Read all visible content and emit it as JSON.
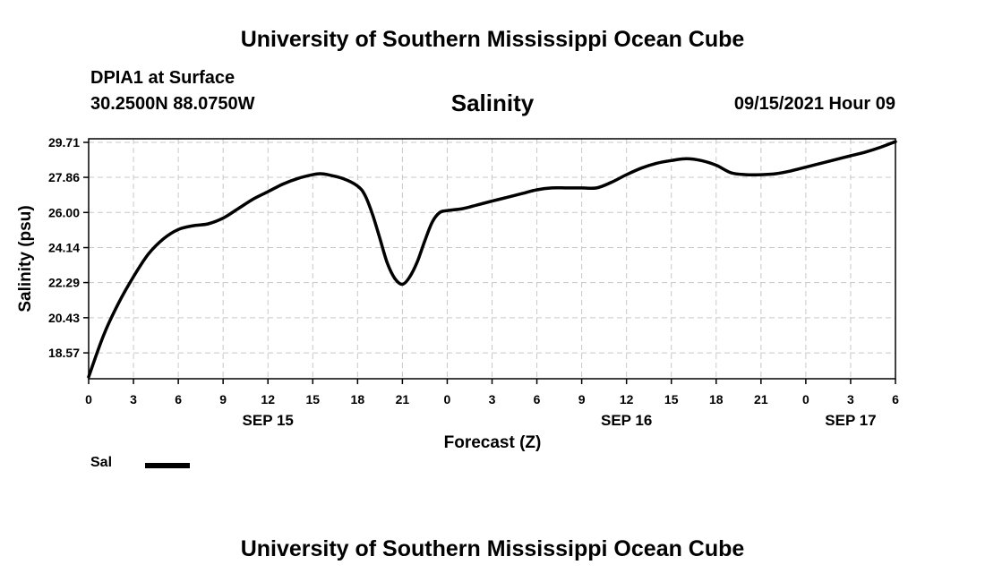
{
  "header": {
    "title_top": "University of Southern Mississippi Ocean Cube",
    "station": "DPIA1 at Surface",
    "coordinates": "30.2500N  88.0750W",
    "plot_title": "Salinity",
    "timestamp": "09/15/2021 Hour 09"
  },
  "footer": {
    "title_bottom": "University of Southern Mississippi Ocean Cube"
  },
  "legend": {
    "label": "Sal"
  },
  "chart_data": {
    "type": "line",
    "title": "Salinity",
    "xlabel": "Forecast (Z)",
    "ylabel": "Salinity (psu)",
    "xlim": [
      0,
      54
    ],
    "ylim": [
      17.2,
      29.9
    ],
    "y_ticks": [
      "18.57",
      "20.43",
      "22.29",
      "24.14",
      "26.00",
      "27.86",
      "29.71"
    ],
    "x_ticks": [
      "0",
      "3",
      "6",
      "9",
      "12",
      "15",
      "18",
      "21",
      "0",
      "3",
      "6",
      "9",
      "12",
      "15",
      "18",
      "21",
      "0",
      "3",
      "6"
    ],
    "date_labels": [
      {
        "label": "SEP 15",
        "hour": 12
      },
      {
        "label": "SEP 16",
        "hour": 36
      },
      {
        "label": "SEP 17",
        "hour": 51
      }
    ],
    "grid": true,
    "series": [
      {
        "name": "Sal",
        "color": "#000000",
        "x": [
          0,
          1,
          2,
          3,
          4,
          5,
          6,
          7,
          8,
          9,
          10,
          11,
          12,
          13,
          14,
          15,
          15.5,
          16,
          17,
          18,
          18.5,
          19,
          19.5,
          20,
          20.5,
          21,
          21.5,
          22,
          22.5,
          23,
          23.5,
          24,
          25,
          26,
          27,
          28,
          29,
          30,
          31,
          32,
          33,
          34,
          35,
          36,
          37,
          38,
          39,
          40,
          41,
          42,
          43,
          44,
          45,
          46,
          47,
          48,
          49,
          50,
          51,
          52,
          53,
          54
        ],
        "y": [
          17.3,
          19.5,
          21.2,
          22.6,
          23.8,
          24.6,
          25.1,
          25.3,
          25.4,
          25.7,
          26.2,
          26.7,
          27.1,
          27.5,
          27.8,
          28.0,
          28.05,
          28.0,
          27.8,
          27.4,
          26.9,
          25.9,
          24.6,
          23.3,
          22.5,
          22.2,
          22.6,
          23.4,
          24.5,
          25.5,
          26.0,
          26.1,
          26.2,
          26.4,
          26.6,
          26.8,
          27.0,
          27.2,
          27.3,
          27.3,
          27.3,
          27.3,
          27.6,
          28.0,
          28.35,
          28.6,
          28.75,
          28.85,
          28.75,
          28.5,
          28.1,
          28.0,
          28.0,
          28.05,
          28.2,
          28.4,
          28.6,
          28.8,
          29.0,
          29.2,
          29.45,
          29.75
        ]
      }
    ]
  }
}
